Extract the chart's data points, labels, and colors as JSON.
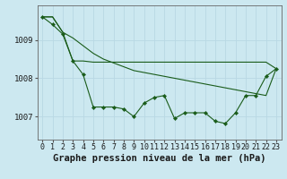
{
  "title": "Graphe pression niveau de la mer (hPa)",
  "bg_color": "#cce8f0",
  "grid_color": "#b8d8e4",
  "line_color": "#1a5c1a",
  "xlim": [
    -0.5,
    23.5
  ],
  "ylim": [
    1006.4,
    1009.9
  ],
  "yticks": [
    1007,
    1008,
    1009
  ],
  "xticks": [
    0,
    1,
    2,
    3,
    4,
    5,
    6,
    7,
    8,
    9,
    10,
    11,
    12,
    13,
    14,
    15,
    16,
    17,
    18,
    19,
    20,
    21,
    22,
    23
  ],
  "line1_y": [
    1009.6,
    1009.6,
    1009.2,
    1009.05,
    1008.85,
    1008.65,
    1008.5,
    1008.4,
    1008.3,
    1008.2,
    1008.15,
    1008.1,
    1008.05,
    1008.0,
    1007.95,
    1007.9,
    1007.85,
    1007.8,
    1007.75,
    1007.7,
    1007.65,
    1007.6,
    1007.55,
    1008.25
  ],
  "line2_y": [
    1009.6,
    1009.6,
    1009.2,
    1008.45,
    1008.45,
    1008.42,
    1008.42,
    1008.42,
    1008.42,
    1008.42,
    1008.42,
    1008.42,
    1008.42,
    1008.42,
    1008.42,
    1008.42,
    1008.42,
    1008.42,
    1008.42,
    1008.42,
    1008.42,
    1008.42,
    1008.42,
    1008.25
  ],
  "line3_y": [
    1009.6,
    1009.4,
    1009.15,
    1008.45,
    1008.1,
    1007.25,
    1007.25,
    1007.25,
    1007.2,
    1007.0,
    1007.35,
    1007.5,
    1007.55,
    1006.95,
    1007.1,
    1007.1,
    1007.1,
    1006.88,
    1006.82,
    1007.1,
    1007.55,
    1007.55,
    1008.05,
    1008.25
  ],
  "font_family": "monospace",
  "title_fontsize": 7.5,
  "tick_fontsize": 6.0,
  "marker": "D",
  "marker_size": 2.2,
  "linewidth": 0.8
}
